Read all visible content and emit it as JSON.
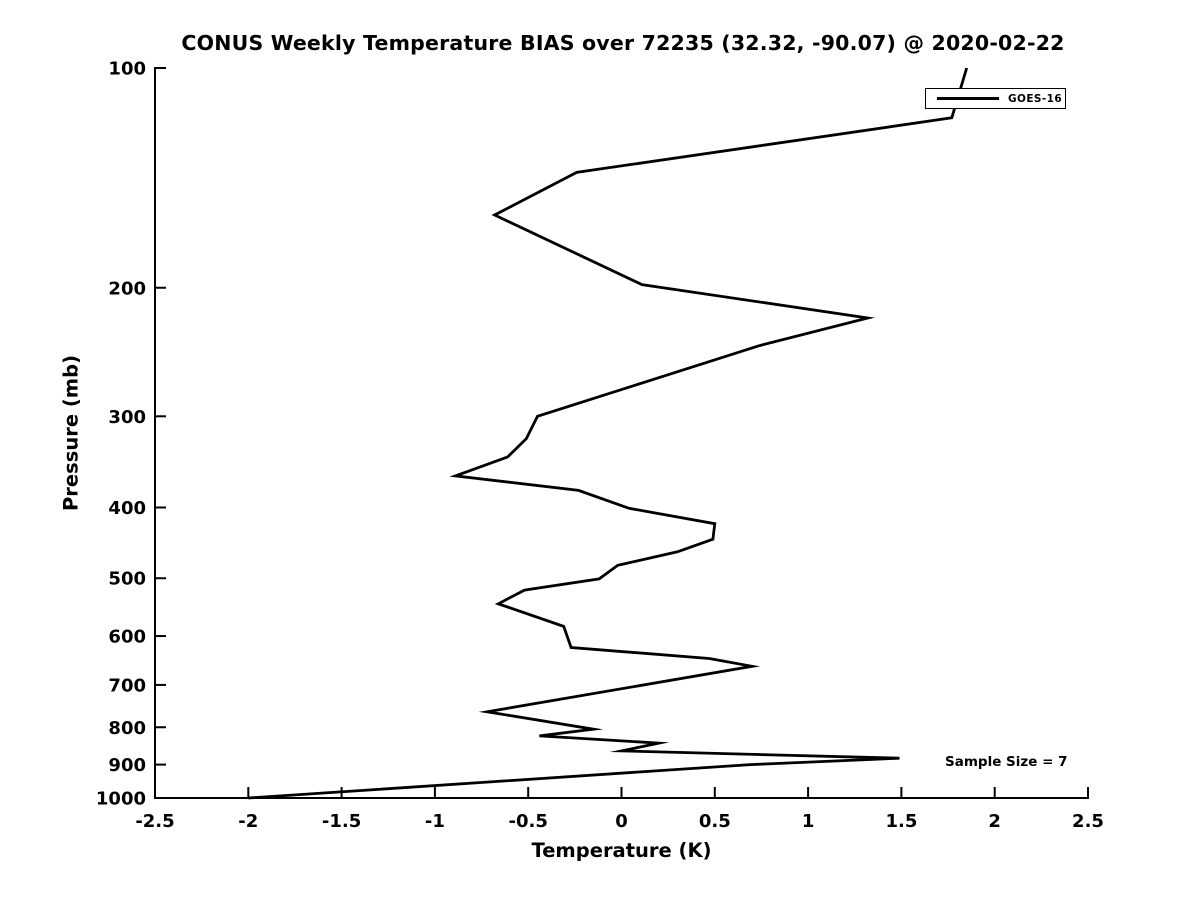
{
  "figure": {
    "background": "#ffffff",
    "foreground": "#000000"
  },
  "chart_data": {
    "type": "line",
    "title": "CONUS Weekly Temperature BIAS over 72235 (32.32, -90.07) @ 2020-02-22",
    "xlabel": "Temperature (K)",
    "ylabel": "Pressure (mb)",
    "xlim": [
      -2.5,
      2.5
    ],
    "ylim": [
      100,
      1000
    ],
    "y_scale": "log10, inverted (100 mb at top, 1000 mb at bottom)",
    "grid": false,
    "xticks": [
      -2.5,
      -2,
      -1.5,
      -1,
      -0.5,
      0,
      0.5,
      1,
      1.5,
      2,
      2.5
    ],
    "yticks": [
      100,
      200,
      300,
      400,
      500,
      600,
      700,
      800,
      900,
      1000
    ],
    "legend": {
      "position": "top-right",
      "entries": [
        {
          "label": "GOES-16",
          "color": "#000000",
          "line_width": 3
        }
      ]
    },
    "annotation": "Sample Size = 7",
    "series": [
      {
        "name": "GOES-16",
        "color": "#000000",
        "points_temperature_K_vs_pressure_mb": [
          [
            1.85,
            100
          ],
          [
            1.77,
            117
          ],
          [
            -0.24,
            139
          ],
          [
            -0.68,
            159
          ],
          [
            0.11,
            198
          ],
          [
            1.32,
            220
          ],
          [
            0.74,
            240
          ],
          [
            -0.45,
            300
          ],
          [
            -0.51,
            322
          ],
          [
            -0.61,
            341
          ],
          [
            -0.89,
            362
          ],
          [
            -0.23,
            379
          ],
          [
            0.04,
            401
          ],
          [
            0.5,
            421
          ],
          [
            0.49,
            442
          ],
          [
            0.3,
            460
          ],
          [
            -0.02,
            480
          ],
          [
            -0.12,
            501
          ],
          [
            -0.52,
            519
          ],
          [
            -0.66,
            542
          ],
          [
            -0.31,
            582
          ],
          [
            -0.27,
            622
          ],
          [
            0.47,
            644
          ],
          [
            0.7,
            660
          ],
          [
            -0.72,
            762
          ],
          [
            -0.15,
            805
          ],
          [
            -0.44,
            822
          ],
          [
            0.2,
            841
          ],
          [
            0.0,
            862
          ],
          [
            1.49,
            882
          ],
          [
            0.69,
            900
          ],
          [
            -2.0,
            1000
          ]
        ]
      }
    ]
  }
}
